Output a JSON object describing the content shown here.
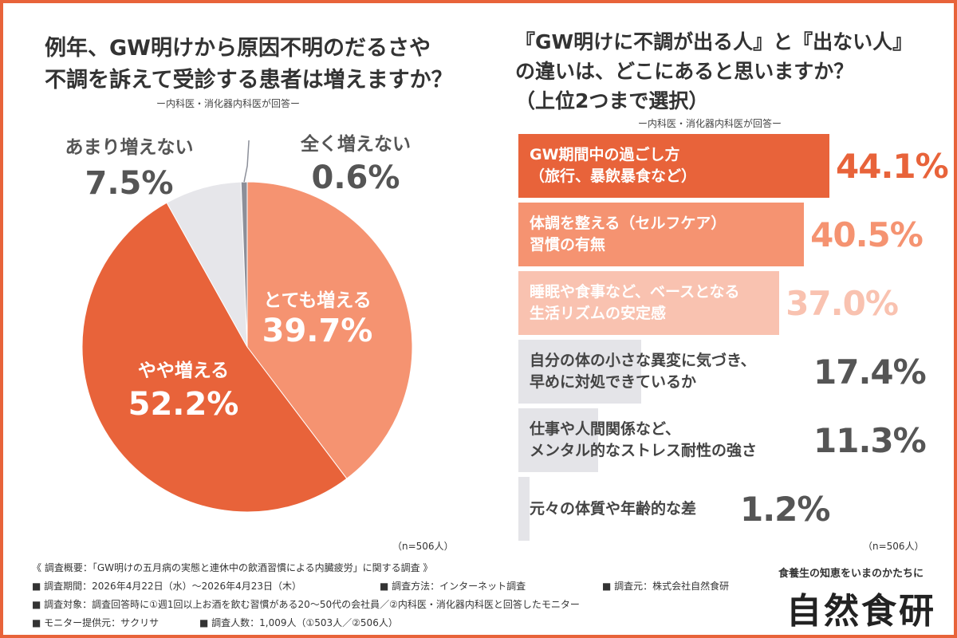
{
  "left": {
    "title_line1": "例年、GW明けから原因不明のだるさや",
    "title_line2": "不調を訴えて受診する患者は増えますか？",
    "respondent_note": "ー内科医・消化器内科医が回答ー",
    "n_note": "（n=506人）"
  },
  "right": {
    "title_line1": "『GW明けに不調が出る人』と『出ない人』",
    "title_line2": "の違いは、どこにあると思いますか？",
    "title_line3": "（上位2つまで選択）",
    "respondent_note": "ー内科医・消化器内科医が回答ー",
    "n_note": "（n=506人）"
  },
  "chart_data": [
    {
      "type": "pie",
      "title": "例年、GW明けから原因不明のだるさや不調を訴えて受診する患者は増えますか？",
      "slices": [
        {
          "label": "とても増える",
          "value_label": "39.7%",
          "value": 39.7,
          "color": "#f59371"
        },
        {
          "label": "やや増える",
          "value_label": "52.2%",
          "value": 52.2,
          "color": "#e8633a"
        },
        {
          "label": "あまり増えない",
          "value_label": "7.5%",
          "value": 7.5,
          "color": "#e6e6ea"
        },
        {
          "label": "全く増えない",
          "value_label": "0.6%",
          "value": 0.6,
          "color": "#8c8f99"
        }
      ]
    },
    {
      "type": "bar",
      "orientation": "horizontal",
      "title": "『GW明けに不調が出る人』と『出ない人』の違いは、どこにあると思いますか？（上位2つまで選択）",
      "bars": [
        {
          "line1": "GW期間中の過ごし方",
          "line2": "（旅行、暴飲暴食など）",
          "value": 44.1,
          "value_label": "44.1%",
          "fill": "#e8633a",
          "text": "#ffffff",
          "value_color": "#e8633a"
        },
        {
          "line1": "体調を整える（セルフケア）",
          "line2": "習慣の有無",
          "value": 40.5,
          "value_label": "40.5%",
          "fill": "#f59371",
          "text": "#ffffff",
          "value_color": "#f59371"
        },
        {
          "line1": "睡眠や食事など、ベースとなる",
          "line2": "生活リズムの安定感",
          "value": 37.0,
          "value_label": "37.0%",
          "fill": "#f9c2b0",
          "text": "#ffffff",
          "value_color": "#f9c2b0"
        },
        {
          "line1": "自分の体の小さな異変に気づき、",
          "line2": "早めに対処できているか",
          "value": 17.4,
          "value_label": "17.4%",
          "fill": "#e4e4e8",
          "text": "#444444",
          "value_color": "#555555"
        },
        {
          "line1": "仕事や人間関係など、",
          "line2": "メンタル的なストレス耐性の強さ",
          "value": 11.3,
          "value_label": "11.3%",
          "fill": "#e4e4e8",
          "text": "#444444",
          "value_color": "#555555"
        },
        {
          "line1": "元々の体質や年齢的な差",
          "line2": "",
          "value": 1.2,
          "value_label": "1.2%",
          "fill": "#e4e4e8",
          "text": "#444444",
          "value_color": "#555555"
        }
      ]
    }
  ],
  "survey": {
    "heading": "《 調査概要：「GW明けの五月病の実態と連休中の飲酒習慣による内臓疲労」に関する調査 》",
    "period": "■ 調査期間：2026年4月22日（水）〜2026年4月23日（木）",
    "method": "■ 調査方法：インターネット調査",
    "source": "■ 調査元：株式会社自然食研",
    "target": "■ 調査対象：調査回答時に①週1回以上お酒を飲む習慣がある20〜50代の会社員／②内科医・消化器内科医と回答したモニター",
    "provider": "■ モニター提供元：サクリサ",
    "count": "■ 調査人数：1,009人（①503人／②506人）"
  },
  "brand": {
    "tagline": "食養生の知恵をいまのかたちに",
    "name": "自然食研"
  }
}
